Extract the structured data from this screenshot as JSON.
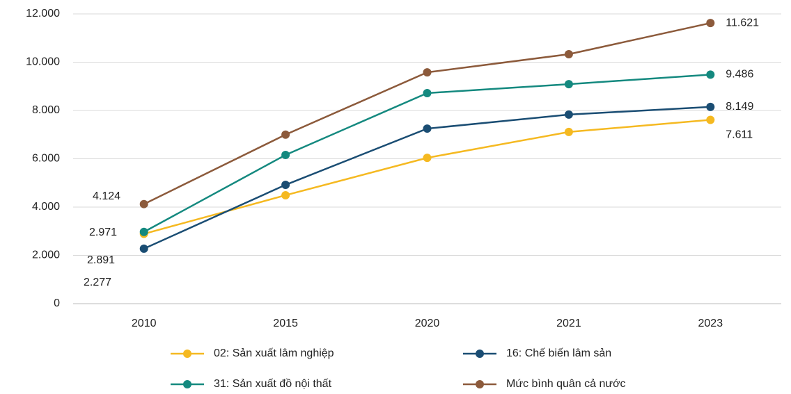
{
  "chart_data": {
    "type": "line",
    "categories": [
      "2010",
      "2015",
      "2020",
      "2021",
      "2023"
    ],
    "series": [
      {
        "name": "02: Sản xuất lâm nghiệp",
        "color": "#f5b921",
        "values": [
          2891,
          4490,
          6040,
          7110,
          7611
        ],
        "value_labels": [
          "2.891",
          null,
          null,
          null,
          "7.611"
        ]
      },
      {
        "name": "16: Chế biến lâm sản",
        "color": "#1a4d73",
        "values": [
          2277,
          4920,
          7250,
          7830,
          8149
        ],
        "value_labels": [
          "2.277",
          null,
          null,
          null,
          "8.149"
        ]
      },
      {
        "name": "31: Sản xuất đồ nội thất",
        "color": "#14897f",
        "values": [
          2971,
          6160,
          8720,
          9090,
          9486
        ],
        "value_labels": [
          "2.971",
          null,
          null,
          null,
          "9.486"
        ]
      },
      {
        "name": "Mức bình quân cả nước",
        "color": "#8c5a3b",
        "values": [
          4124,
          7000,
          9580,
          10330,
          11621
        ],
        "value_labels": [
          "4.124",
          null,
          null,
          null,
          "11.621"
        ]
      }
    ],
    "ylim": [
      0,
      12000
    ],
    "yticks": [
      0,
      {
        "value": 2000,
        "label": "2.000"
      },
      {
        "value": 4000,
        "label": "4.000"
      },
      {
        "value": 6000,
        "label": "6.000"
      },
      {
        "value": 8000,
        "label": "8.000"
      },
      {
        "value": 10000,
        "label": "10.000"
      },
      {
        "value": 12000,
        "label": "12.000"
      }
    ],
    "grid": true
  }
}
